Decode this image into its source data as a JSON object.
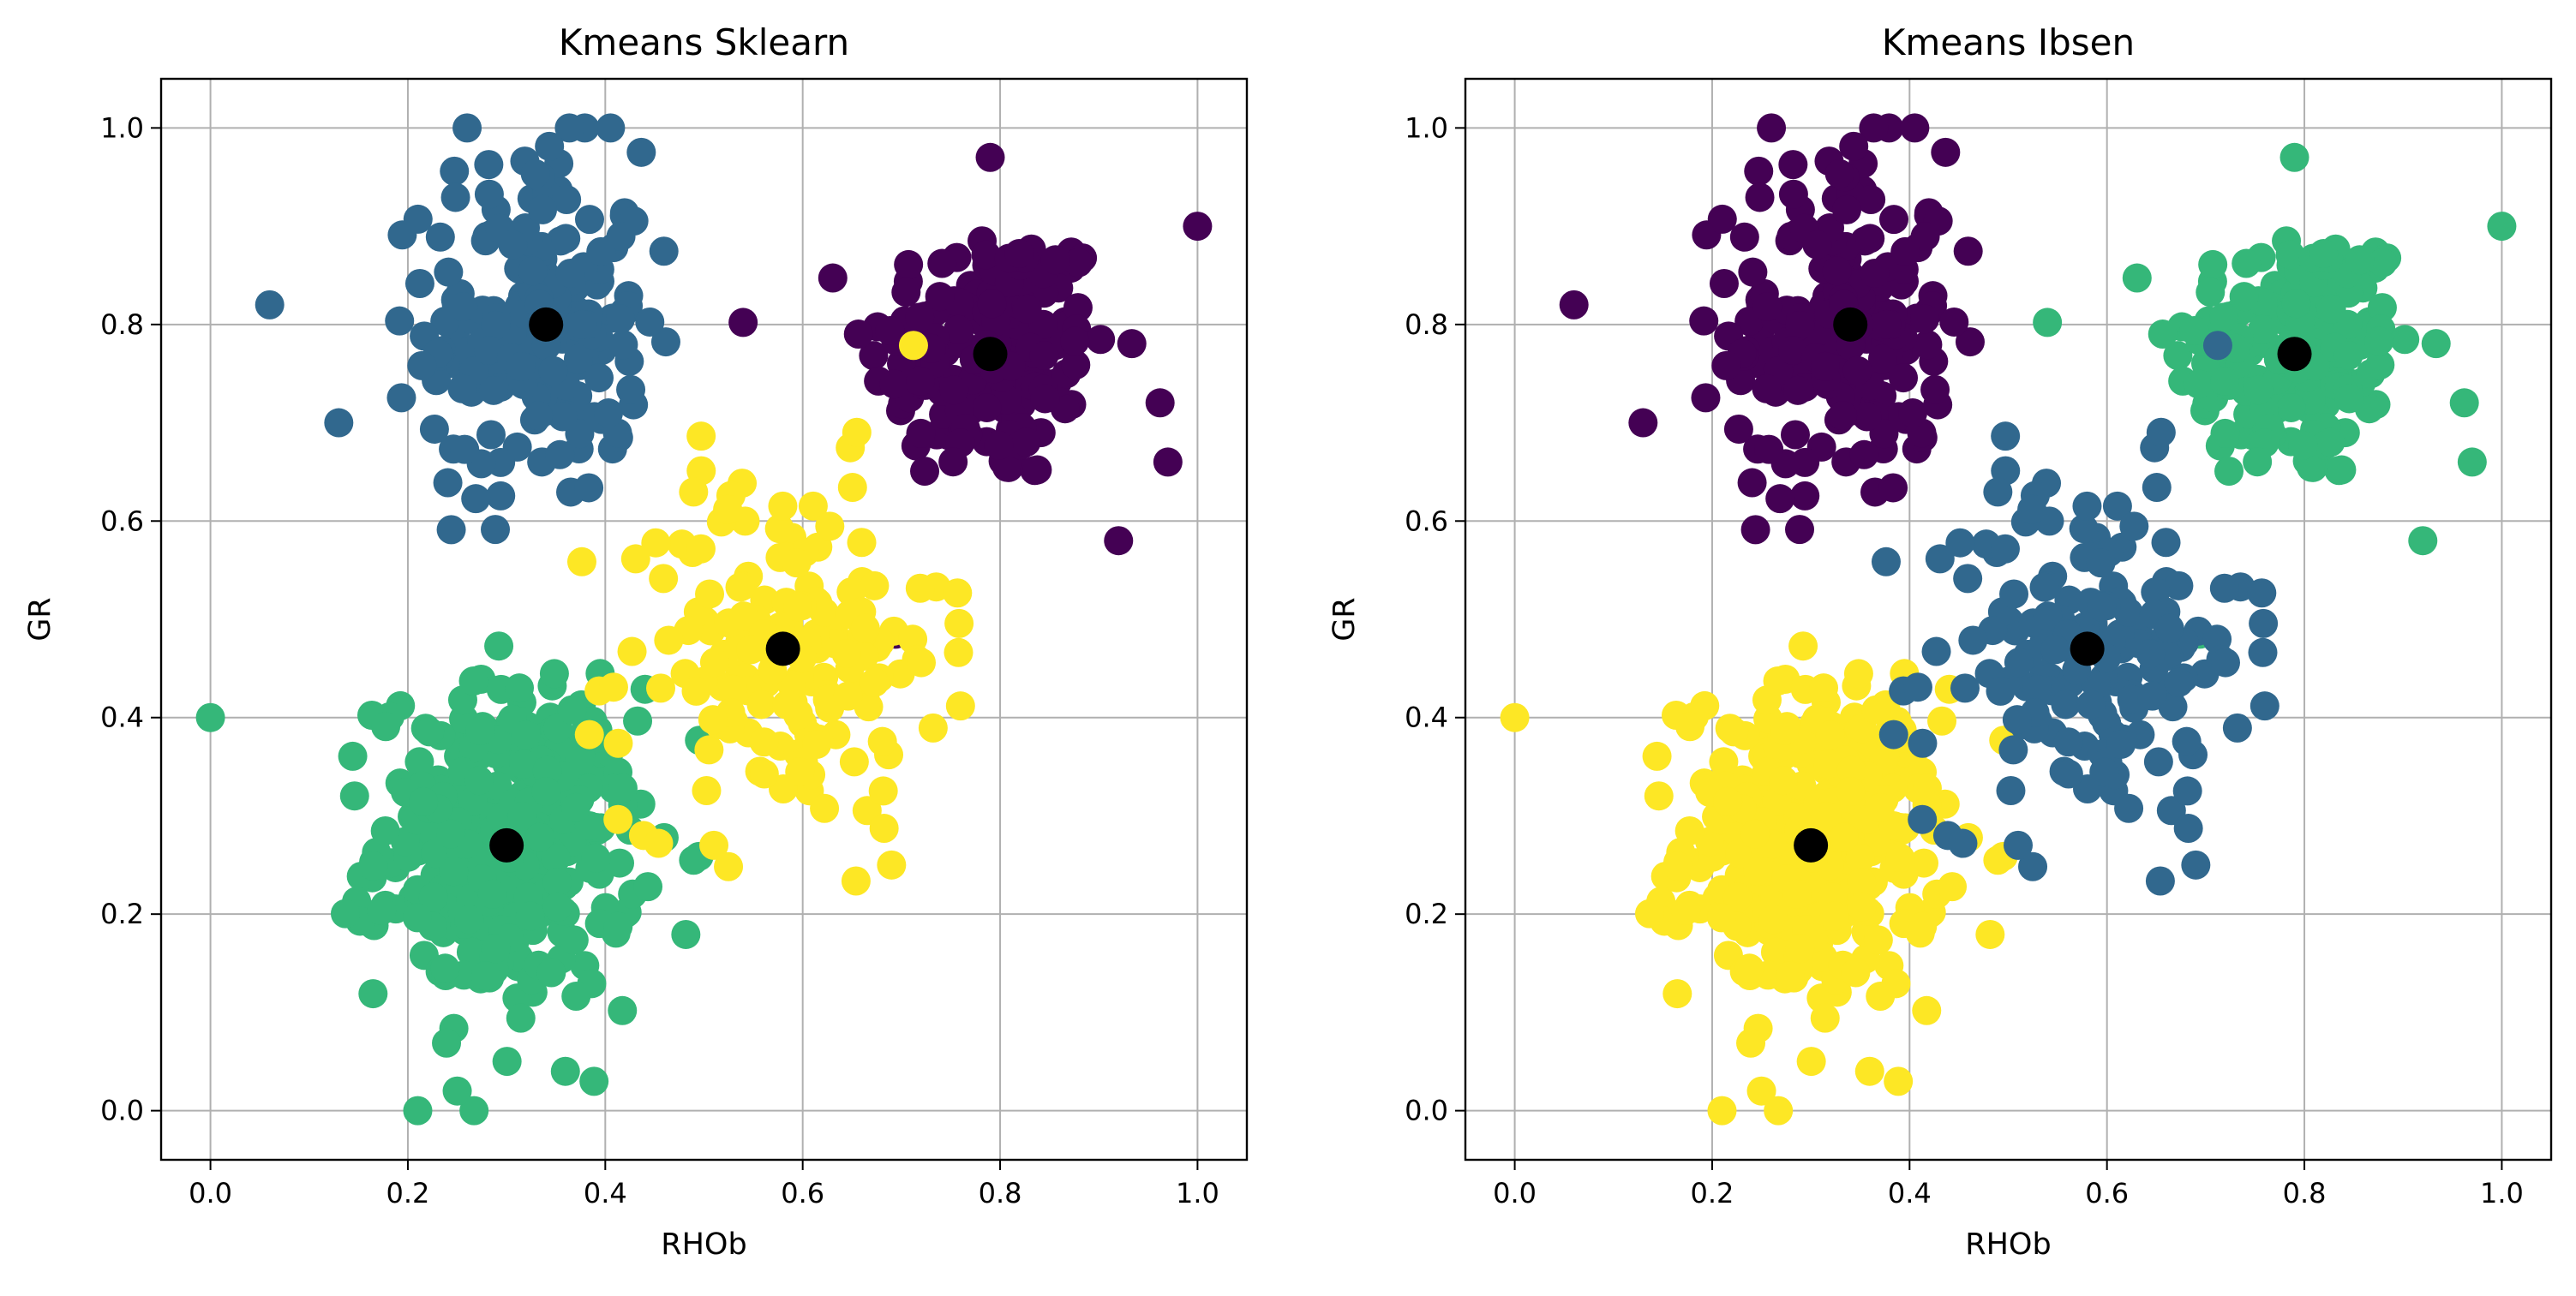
{
  "chart_data": [
    {
      "type": "scatter",
      "title": "Kmeans Sklearn",
      "xlabel": "RHOb",
      "ylabel": "GR",
      "xlim": [
        -0.05,
        1.05
      ],
      "ylim": [
        -0.05,
        1.05
      ],
      "xticks": [
        "0.0",
        "0.2",
        "0.4",
        "0.6",
        "0.8",
        "1.0"
      ],
      "yticks": [
        "0.0",
        "0.2",
        "0.4",
        "0.6",
        "0.8",
        "1.0"
      ],
      "grid": true,
      "cluster_colors": [
        "#440154",
        "#31688e",
        "#35b779",
        "#fde725"
      ],
      "clusters": [
        {
          "cluster": 0,
          "center": [
            0.79,
            0.77
          ],
          "spread": [
            0.062,
            0.068
          ],
          "count": 180,
          "color": "#440154"
        },
        {
          "cluster": 1,
          "center": [
            0.33,
            0.8
          ],
          "spread": [
            0.055,
            0.09
          ],
          "count": 190,
          "color": "#31688e"
        },
        {
          "cluster": 2,
          "center": [
            0.3,
            0.27
          ],
          "spread": [
            0.065,
            0.08
          ],
          "count": 360,
          "color": "#35b779"
        },
        {
          "cluster": 3,
          "center": [
            0.58,
            0.47
          ],
          "spread": [
            0.08,
            0.09
          ],
          "count": 170,
          "color": "#fde725"
        }
      ],
      "extra_points": [
        {
          "x": 0.0,
          "y": 0.4,
          "cluster": 2
        },
        {
          "x": 0.06,
          "y": 0.82,
          "cluster": 1
        },
        {
          "x": 1.0,
          "y": 0.9,
          "cluster": 0
        },
        {
          "x": 0.97,
          "y": 0.66,
          "cluster": 0
        },
        {
          "x": 0.92,
          "y": 0.58,
          "cluster": 0
        },
        {
          "x": 0.21,
          "y": 0.0,
          "cluster": 2
        },
        {
          "x": 0.25,
          "y": 0.02,
          "cluster": 2
        },
        {
          "x": 0.69,
          "y": 0.25,
          "cluster": 3
        },
        {
          "x": 0.13,
          "y": 0.7,
          "cluster": 1
        },
        {
          "x": 0.26,
          "y": 1.0,
          "cluster": 1
        },
        {
          "x": 0.79,
          "y": 0.97,
          "cluster": 0
        },
        {
          "x": 0.51,
          "y": 0.27,
          "cluster": 3
        }
      ],
      "centroids": [
        [
          0.79,
          0.77
        ],
        [
          0.34,
          0.8
        ],
        [
          0.3,
          0.27
        ],
        [
          0.58,
          0.47
        ]
      ],
      "centroid_color": "#000000"
    },
    {
      "type": "scatter",
      "title": "Kmeans Ibsen",
      "xlabel": "RHOb",
      "ylabel": "GR",
      "xlim": [
        -0.05,
        1.05
      ],
      "ylim": [
        -0.05,
        1.05
      ],
      "xticks": [
        "0.0",
        "0.2",
        "0.4",
        "0.6",
        "0.8",
        "1.0"
      ],
      "yticks": [
        "0.0",
        "0.2",
        "0.4",
        "0.6",
        "0.8",
        "1.0"
      ],
      "grid": true,
      "cluster_colors": [
        "#440154",
        "#31688e",
        "#35b779",
        "#fde725"
      ],
      "cluster_color_map": {
        "0": "#35b779",
        "1": "#440154",
        "2": "#fde725",
        "3": "#31688e"
      },
      "same_points_as": 0,
      "centroids": [
        [
          0.79,
          0.77
        ],
        [
          0.34,
          0.8
        ],
        [
          0.3,
          0.27
        ],
        [
          0.58,
          0.47
        ]
      ],
      "centroid_color": "#000000"
    }
  ]
}
